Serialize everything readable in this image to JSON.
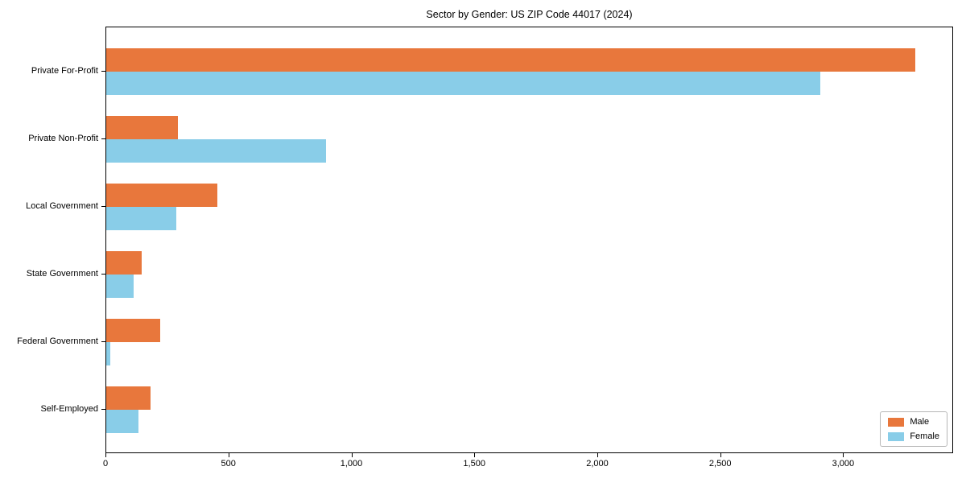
{
  "chart_data": {
    "type": "bar",
    "orientation": "horizontal",
    "title": "Sector by Gender: US ZIP Code 44017 (2024)",
    "categories": [
      "Private For-Profit",
      "Private Non-Profit",
      "Local Government",
      "State Government",
      "Federal Government",
      "Self-Employed"
    ],
    "series": [
      {
        "name": "Male",
        "color": "#e8773c",
        "values": [
          3290,
          290,
          450,
          145,
          220,
          180
        ]
      },
      {
        "name": "Female",
        "color": "#89cde8",
        "values": [
          2905,
          895,
          285,
          110,
          15,
          130
        ]
      }
    ],
    "xlabel": "",
    "ylabel": "",
    "xlim": [
      0,
      3447
    ],
    "x_ticks": [
      0,
      500,
      1000,
      1500,
      2000,
      2500,
      3000
    ],
    "x_tick_labels": [
      "0",
      "500",
      "1,000",
      "1,500",
      "2,000",
      "2,500",
      "3,000"
    ],
    "grid": false,
    "legend_position": "lower right",
    "spine_color": "#000000",
    "background_color": "#ffffff"
  }
}
